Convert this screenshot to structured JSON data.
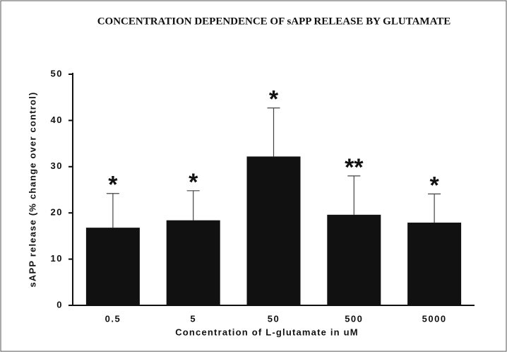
{
  "chart_data": {
    "type": "bar",
    "title": "CONCENTRATION DEPENDENCE OF sAPP RELEASE BY GLUTAMATE",
    "x_label": "Concentration of L-glutamate in uM",
    "y_label": "sAPP release (% change over control)",
    "categories": [
      "0.5",
      "5",
      "50",
      "500",
      "5000"
    ],
    "values": [
      16.8,
      18.4,
      32.2,
      19.6,
      17.9
    ],
    "errors": [
      7.4,
      6.4,
      10.5,
      8.4,
      6.2
    ],
    "annotations": [
      "*",
      "*",
      "*",
      "**",
      "*"
    ],
    "color": "#111111",
    "ylim": [
      0,
      50
    ],
    "yticks": [
      0,
      10,
      20,
      30,
      40,
      50
    ],
    "grid": false
  }
}
